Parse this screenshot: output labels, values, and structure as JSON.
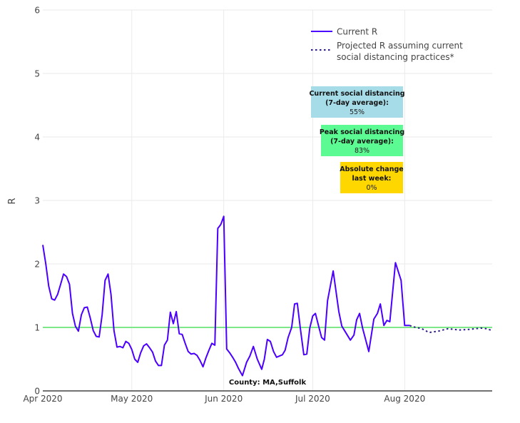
{
  "chart_data": {
    "type": "line",
    "title": "",
    "xlabel": "",
    "ylabel": "R",
    "x_units": "days since Apr 1 2020",
    "xlim": [
      0,
      151.5
    ],
    "ylim": [
      0,
      6
    ],
    "grid": true,
    "y_ticks": [
      0,
      1,
      2,
      3,
      4,
      5,
      6
    ],
    "x_ticks": [
      {
        "day": 0,
        "label": "Apr 2020"
      },
      {
        "day": 30,
        "label": "May 2020"
      },
      {
        "day": 61,
        "label": "Jun 2020"
      },
      {
        "day": 91,
        "label": "Jul 2020"
      },
      {
        "day": 122,
        "label": "Aug 2020"
      }
    ],
    "reference_line": {
      "y": 1,
      "color": "#7ee787"
    },
    "legend": {
      "placement": "top-right",
      "entries": [
        {
          "label": "Current R",
          "style": "solid"
        },
        {
          "label_lines": [
            "Projected R assuming current",
            "social distancing practices*"
          ],
          "style": "dotted"
        }
      ]
    },
    "series": [
      {
        "name": "Current R",
        "color": "#4b00ff",
        "points": [
          [
            0,
            2.3
          ],
          [
            1,
            2.0
          ],
          [
            2,
            1.65
          ],
          [
            3,
            1.45
          ],
          [
            4,
            1.43
          ],
          [
            5,
            1.52
          ],
          [
            6,
            1.68
          ],
          [
            7,
            1.84
          ],
          [
            8,
            1.8
          ],
          [
            9,
            1.68
          ],
          [
            10,
            1.22
          ],
          [
            11,
            1.02
          ],
          [
            12,
            0.94
          ],
          [
            13,
            1.2
          ],
          [
            14,
            1.31
          ],
          [
            15,
            1.32
          ],
          [
            16,
            1.15
          ],
          [
            17,
            0.95
          ],
          [
            18,
            0.86
          ],
          [
            19,
            0.85
          ],
          [
            20,
            1.2
          ],
          [
            21,
            1.74
          ],
          [
            22,
            1.84
          ],
          [
            23,
            1.52
          ],
          [
            24,
            0.95
          ],
          [
            25,
            0.69
          ],
          [
            26,
            0.7
          ],
          [
            27,
            0.68
          ],
          [
            28,
            0.78
          ],
          [
            29,
            0.75
          ],
          [
            30,
            0.65
          ],
          [
            31,
            0.5
          ],
          [
            32,
            0.45
          ],
          [
            33,
            0.6
          ],
          [
            34,
            0.71
          ],
          [
            35,
            0.74
          ],
          [
            36,
            0.68
          ],
          [
            37,
            0.61
          ],
          [
            38,
            0.47
          ],
          [
            39,
            0.4
          ],
          [
            40,
            0.4
          ],
          [
            41,
            0.72
          ],
          [
            42,
            0.8
          ],
          [
            43,
            1.24
          ],
          [
            44,
            1.06
          ],
          [
            45,
            1.25
          ],
          [
            46,
            0.9
          ],
          [
            47,
            0.89
          ],
          [
            48,
            0.75
          ],
          [
            49,
            0.62
          ],
          [
            50,
            0.58
          ],
          [
            51,
            0.59
          ],
          [
            52,
            0.56
          ],
          [
            53,
            0.48
          ],
          [
            54,
            0.38
          ],
          [
            55,
            0.52
          ],
          [
            56,
            0.64
          ],
          [
            57,
            0.75
          ],
          [
            58,
            0.72
          ],
          [
            59,
            2.56
          ],
          [
            60,
            2.62
          ],
          [
            61,
            2.75
          ],
          [
            62,
            0.66
          ],
          [
            63,
            0.6
          ],
          [
            64,
            0.53
          ],
          [
            65,
            0.45
          ],
          [
            66,
            0.35
          ],
          [
            67.3,
            0.24
          ],
          [
            68.7,
            0.45
          ],
          [
            69.8,
            0.55
          ],
          [
            71,
            0.7
          ],
          [
            72.3,
            0.5
          ],
          [
            73.8,
            0.34
          ],
          [
            74.7,
            0.5
          ],
          [
            75.7,
            0.81
          ],
          [
            76.7,
            0.78
          ],
          [
            77.8,
            0.62
          ],
          [
            78.8,
            0.53
          ],
          [
            80.8,
            0.57
          ],
          [
            81.7,
            0.64
          ],
          [
            82.7,
            0.84
          ],
          [
            83.9,
            1.0
          ],
          [
            84.9,
            1.37
          ],
          [
            85.8,
            1.38
          ],
          [
            86.8,
            0.99
          ],
          [
            88,
            0.57
          ],
          [
            89,
            0.58
          ],
          [
            90,
            0.99
          ],
          [
            91,
            1.18
          ],
          [
            91.9,
            1.22
          ],
          [
            93,
            1.02
          ],
          [
            94,
            0.84
          ],
          [
            95,
            0.8
          ],
          [
            96,
            1.42
          ],
          [
            97.9,
            1.89
          ],
          [
            99.8,
            1.25
          ],
          [
            100.8,
            1.02
          ],
          [
            103.7,
            0.8
          ],
          [
            104.9,
            0.88
          ],
          [
            105.8,
            1.12
          ],
          [
            106.8,
            1.22
          ],
          [
            107.8,
            0.99
          ],
          [
            109.9,
            0.62
          ],
          [
            111.6,
            1.13
          ],
          [
            112.8,
            1.22
          ],
          [
            113.8,
            1.37
          ],
          [
            115,
            1.03
          ],
          [
            116,
            1.11
          ],
          [
            117,
            1.09
          ],
          [
            118.9,
            2.02
          ],
          [
            120.8,
            1.74
          ],
          [
            122,
            1.03
          ],
          [
            123.7,
            1.03
          ]
        ]
      },
      {
        "name": "Projected R assuming current social distancing practices*",
        "color": "#2a1a8a",
        "points": [
          [
            123.7,
            1.03
          ],
          [
            124.9,
            1.01
          ],
          [
            127.8,
            0.98
          ],
          [
            130.2,
            0.92
          ],
          [
            133.3,
            0.94
          ],
          [
            136.6,
            0.98
          ],
          [
            140.4,
            0.96
          ],
          [
            144,
            0.97
          ],
          [
            147.6,
            0.99
          ],
          [
            149.5,
            0.98
          ],
          [
            151.5,
            0.95
          ]
        ]
      }
    ],
    "annotations": [
      {
        "id": "current",
        "lines": [
          "Current social distancing",
          "(7-day average):"
        ],
        "value": "55%",
        "bg": "#a6dce8"
      },
      {
        "id": "peak",
        "lines": [
          "Peak social distancing",
          "(7-day average):"
        ],
        "value": "83%",
        "bg": "#5cfa92"
      },
      {
        "id": "change",
        "lines": [
          "Absolute change",
          "last week:"
        ],
        "value": "0%",
        "bg": "#ffd700"
      }
    ],
    "county_label": "County: MA,Suffolk"
  }
}
